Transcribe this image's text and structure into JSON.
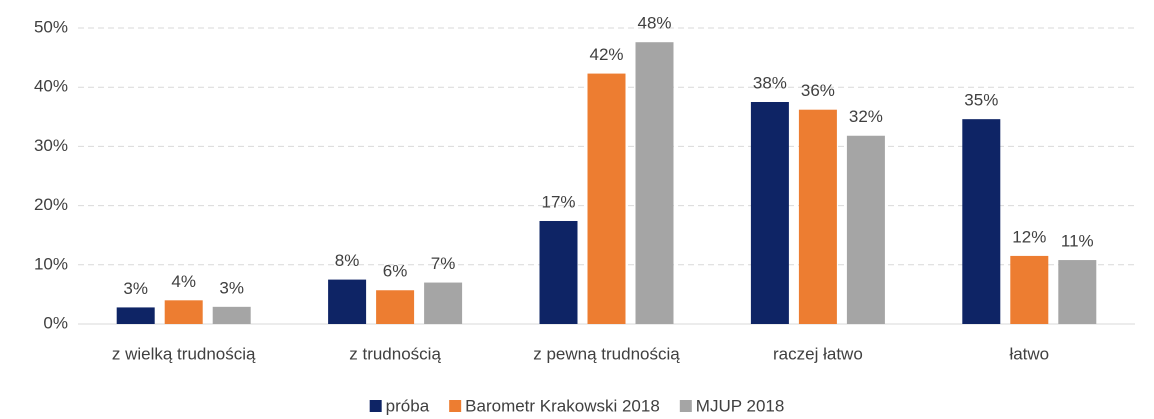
{
  "chart_data": {
    "type": "bar",
    "categories": [
      "z wielką trudnością",
      "z trudnością",
      "z pewną trudnością",
      "raczej łatwo",
      "łatwo"
    ],
    "series": [
      {
        "name": "próba",
        "color": "#0e2465",
        "values": [
          2.8,
          7.5,
          17.4,
          37.5,
          34.6
        ],
        "value_labels": [
          "3%",
          "8%",
          "17%",
          "38%",
          "35%"
        ]
      },
      {
        "name": "Barometr Krakowski 2018",
        "color": "#ed7d31",
        "values": [
          4.0,
          5.7,
          42.3,
          36.2,
          11.5
        ],
        "value_labels": [
          "4%",
          "6%",
          "42%",
          "36%",
          "12%"
        ]
      },
      {
        "name": "MJUP 2018",
        "color": "#a5a5a5",
        "values": [
          2.9,
          7.0,
          47.6,
          31.8,
          10.8
        ],
        "value_labels": [
          "3%",
          "7%",
          "48%",
          "32%",
          "11%"
        ]
      }
    ],
    "ylim": [
      0,
      50
    ],
    "yticks": [
      {
        "value": 0,
        "label": "0%"
      },
      {
        "value": 10,
        "label": "10%"
      },
      {
        "value": 20,
        "label": "20%"
      },
      {
        "value": 30,
        "label": "30%"
      },
      {
        "value": 40,
        "label": "40%"
      },
      {
        "value": 50,
        "label": "50%"
      }
    ],
    "grid": true,
    "legend": "bottom"
  }
}
